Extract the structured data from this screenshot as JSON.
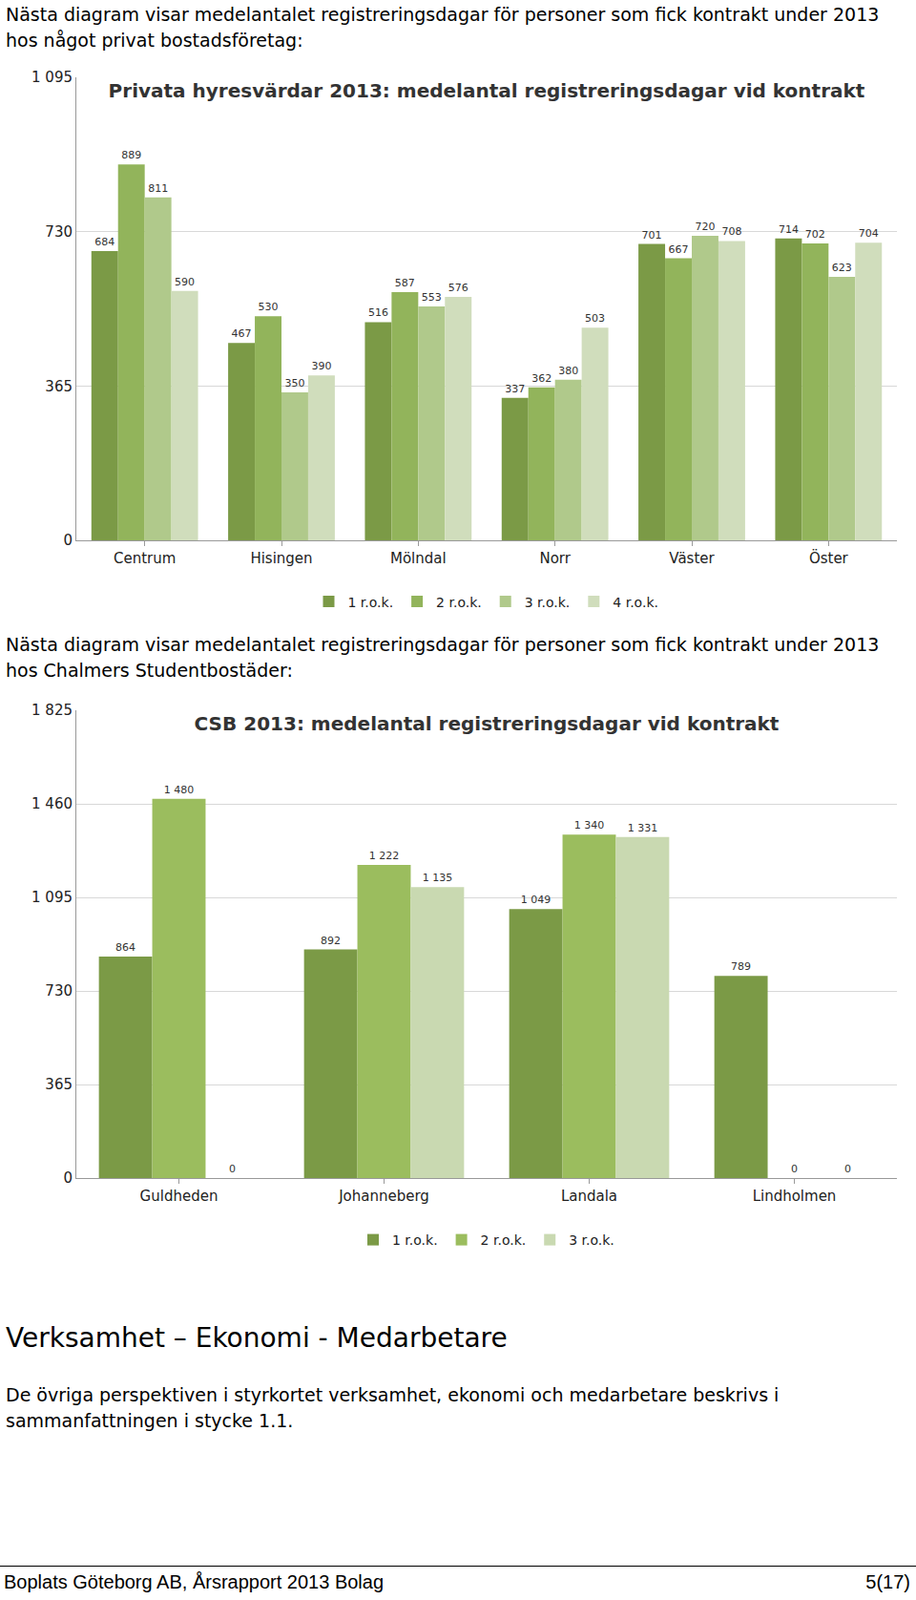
{
  "document": {
    "intro_1": "Nästa diagram visar medelantalet registreringsdagar för personer som fick kontrakt under 2013 hos något privat bostadsföretag:",
    "intro_2": "Nästa diagram visar medelantalet registreringsdagar för personer som fick kontrakt under 2013 hos Chalmers Studentbostäder:",
    "heading": "Verksamhet – Ekonomi - Medarbetare",
    "paragraph": "De övriga perspektiven i styrkortet verksamhet, ekonomi och medarbetare beskrivs i sammanfattningen i stycke 1.1.",
    "footer_left": "Boplats Göteborg AB, Årsrapport 2013 Bolag",
    "footer_right": "5(17)"
  },
  "chart_data": [
    {
      "type": "bar",
      "title": "Privata hyresvärdar 2013: medelantal registreringsdagar vid kontrakt",
      "categories": [
        "Centrum",
        "Hisingen",
        "Mölndal",
        "Norr",
        "Väster",
        "Öster"
      ],
      "series": [
        {
          "name": "1 r.o.k.",
          "color": "#7b9a46",
          "values": [
            684,
            467,
            516,
            337,
            701,
            714
          ]
        },
        {
          "name": "2 r.o.k.",
          "color": "#92b45b",
          "values": [
            889,
            530,
            587,
            362,
            667,
            702
          ]
        },
        {
          "name": "3 r.o.k.",
          "color": "#b0c98b",
          "values": [
            811,
            350,
            553,
            380,
            720,
            623
          ]
        },
        {
          "name": "4 r.o.k.",
          "color": "#d0ddbc",
          "values": [
            590,
            390,
            576,
            503,
            708,
            704
          ]
        }
      ],
      "ylim": [
        0,
        1095
      ],
      "yticks": [
        0,
        365,
        730,
        {
          "value": 1095,
          "label": "1 095"
        }
      ],
      "grid": true,
      "legend": "bottom",
      "data_labels": true
    },
    {
      "type": "bar",
      "title": "CSB 2013: medelantal registreringsdagar vid kontrakt",
      "categories": [
        "Guldheden",
        "Johanneberg",
        "Landala",
        "Lindholmen"
      ],
      "series": [
        {
          "name": "1 r.o.k.",
          "color": "#7b9a46",
          "values": [
            864,
            892,
            1049,
            789
          ],
          "value_labels": [
            "864",
            "892",
            "1 049",
            "789"
          ]
        },
        {
          "name": "2 r.o.k.",
          "color": "#9bbd5e",
          "values": [
            1480,
            1222,
            1340,
            0
          ],
          "value_labels": [
            "1 480",
            "1 222",
            "1 340",
            "0"
          ]
        },
        {
          "name": "3 r.o.k.",
          "color": "#c9d9b1",
          "values": [
            0,
            1135,
            1331,
            0
          ],
          "value_labels": [
            "0",
            "1 135",
            "1 331",
            "0"
          ]
        }
      ],
      "ylim": [
        0,
        1825
      ],
      "yticks": [
        0,
        365,
        730,
        {
          "value": 1095,
          "label": "1 095"
        },
        {
          "value": 1460,
          "label": "1 460"
        },
        {
          "value": 1825,
          "label": "1 825"
        }
      ],
      "grid": true,
      "legend": "bottom",
      "data_labels": true
    }
  ]
}
